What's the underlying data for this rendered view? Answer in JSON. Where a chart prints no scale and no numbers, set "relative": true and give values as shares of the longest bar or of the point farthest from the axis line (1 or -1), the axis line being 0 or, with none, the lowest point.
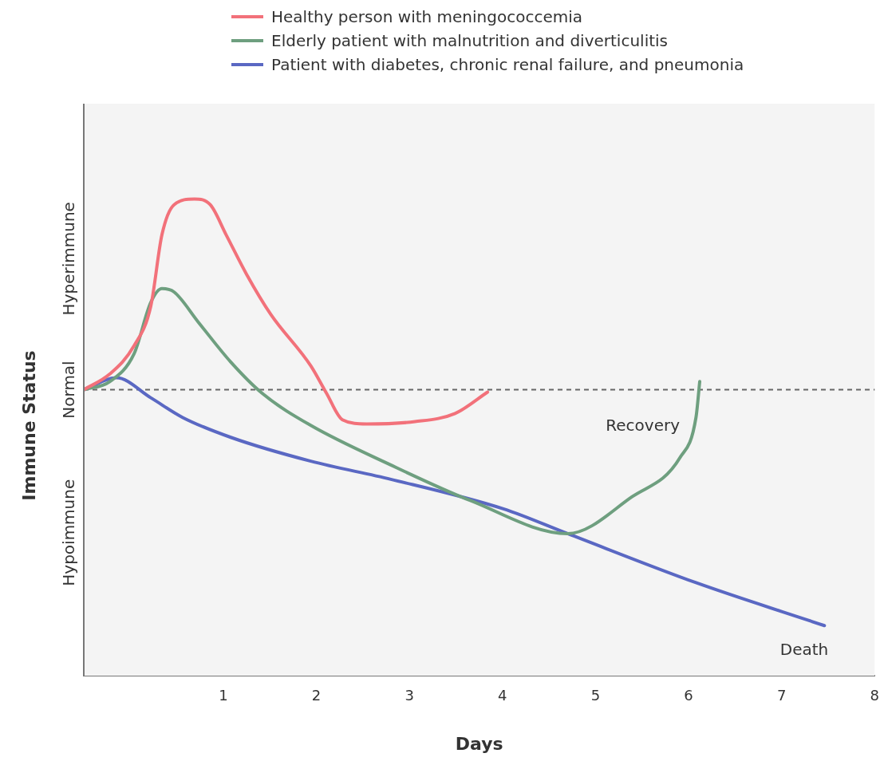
{
  "chart_data": {
    "type": "line",
    "relative": true,
    "xlabel": "Days",
    "ylabel": "Immune Status",
    "xlim": [
      -0.5,
      8
    ],
    "xticks": [
      1,
      2,
      3,
      4,
      5,
      6,
      7,
      8
    ],
    "legend": "top",
    "grid": false,
    "marker": "none",
    "line_style": "solid",
    "series": [
      {
        "name": "Healthy person with meningococcemia",
        "color": "#f2717a",
        "x": [
          -0.5,
          -0.22,
          0.04,
          0.22,
          0.34,
          0.47,
          0.69,
          0.86,
          1.03,
          1.25,
          1.51,
          1.94,
          2.11,
          2.28,
          2.54,
          3.06,
          3.49,
          3.84
        ],
        "values": [
          0.6,
          0.633,
          0.692,
          0.775,
          0.925,
          0.988,
          1.0,
          0.988,
          0.925,
          0.842,
          0.758,
          0.65,
          0.592,
          0.537,
          0.528,
          0.533,
          0.55,
          0.595
        ]
      },
      {
        "name": "Elderly patient with malnutrition and diverticulitis",
        "color": "#6e9f7f",
        "x": [
          -0.5,
          -0.22,
          0.04,
          0.22,
          0.34,
          0.47,
          0.73,
          1.08,
          1.42,
          1.94,
          2.8,
          3.66,
          4.7,
          5.39,
          5.91,
          6.08,
          6.12
        ],
        "values": [
          0.6,
          0.617,
          0.675,
          0.783,
          0.812,
          0.805,
          0.742,
          0.658,
          0.592,
          0.525,
          0.442,
          0.367,
          0.298,
          0.375,
          0.458,
          0.542,
          0.617
        ]
      },
      {
        "name": "Patient with diabetes, chronic renal failure, and pneumonia",
        "color": "#5a68c3",
        "x": [
          -0.5,
          -0.15,
          0.22,
          0.56,
          1.08,
          1.94,
          2.8,
          4.01,
          4.7,
          6.08,
          7.46
        ],
        "values": [
          0.6,
          0.625,
          0.583,
          0.542,
          0.5,
          0.45,
          0.412,
          0.35,
          0.298,
          0.195,
          0.105
        ]
      }
    ],
    "ref_lines": [
      {
        "axis": "y",
        "value": 0.6,
        "label": "Normal",
        "color": "#666666",
        "line_style": "dashed"
      }
    ],
    "annotations": [
      "Hyperimmune",
      "Hypoimmune",
      "Recovery",
      "Death"
    ]
  }
}
